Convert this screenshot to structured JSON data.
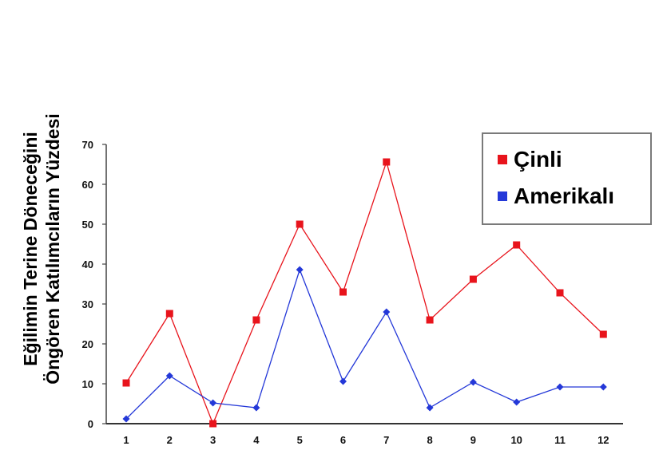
{
  "chart_data": {
    "type": "line",
    "title": "",
    "xlabel": "",
    "ylabel": "Eğilimin Terine Döneceğini Öngören Katılımcıların Yüzdesi",
    "ylabel_lines": [
      "Eğilimin Terine Döneceğini",
      "Öngören Katılımcıların Yüzdesi"
    ],
    "categories": [
      "1",
      "2",
      "3",
      "4",
      "5",
      "6",
      "7",
      "8",
      "9",
      "10",
      "11",
      "12"
    ],
    "ylim": [
      0,
      70
    ],
    "yticks": [
      0,
      10,
      20,
      30,
      40,
      50,
      60,
      70
    ],
    "grid": false,
    "legend_position": "upper right",
    "series": [
      {
        "name": "Çinli",
        "color": "#e8141c",
        "marker": "square",
        "values": [
          10.2,
          27.6,
          0,
          26,
          50,
          33,
          65.6,
          26,
          36.2,
          44.8,
          32.8,
          22.4
        ]
      },
      {
        "name": "Amerikalı",
        "color": "#2438d8",
        "marker": "diamond",
        "values": [
          1.2,
          12,
          5.2,
          4,
          38.6,
          10.6,
          28,
          4,
          10.4,
          5.4,
          9.2,
          9.2
        ]
      }
    ]
  },
  "legend": {
    "items": [
      {
        "label": "Çinli",
        "color": "#e8141c"
      },
      {
        "label": "Amerikalı",
        "color": "#2438d8"
      }
    ]
  }
}
